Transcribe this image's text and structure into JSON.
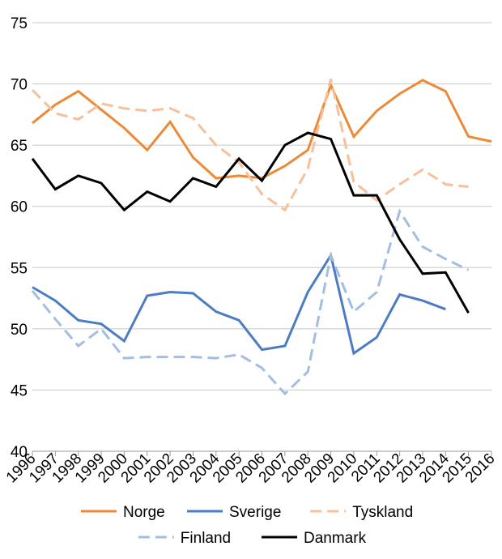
{
  "chart_data": {
    "type": "line",
    "x": [
      "1996",
      "1997",
      "1998",
      "1999",
      "2000",
      "2001",
      "2002",
      "2003",
      "2004",
      "2005",
      "2006",
      "2007",
      "2008",
      "2009",
      "2010",
      "2011",
      "2012",
      "2013",
      "2014",
      "2015",
      "2016"
    ],
    "ylim": [
      40,
      75
    ],
    "yticks": [
      40,
      45,
      50,
      55,
      60,
      65,
      70,
      75
    ],
    "grid": true,
    "legend_position": "bottom",
    "series": [
      {
        "name": "Norge",
        "color": "#ed8a38",
        "dash": "solid",
        "values": [
          66.8,
          68.3,
          69.4,
          67.9,
          66.4,
          64.6,
          66.9,
          64.0,
          62.3,
          62.5,
          62.3,
          63.3,
          64.6,
          69.9,
          65.7,
          67.8,
          69.2,
          70.3,
          69.4,
          65.7,
          65.3
        ]
      },
      {
        "name": "Sverige",
        "color": "#4c7dc3",
        "dash": "solid",
        "values": [
          53.4,
          52.3,
          50.7,
          50.4,
          49.0,
          52.7,
          53.0,
          52.9,
          51.4,
          50.7,
          48.3,
          48.6,
          53.0,
          56.0,
          48.0,
          49.3,
          52.8,
          52.3,
          51.6,
          null,
          null
        ]
      },
      {
        "name": "Tyskland",
        "color": "#f7c09a",
        "dash": "dashed",
        "values": [
          69.5,
          67.6,
          67.1,
          68.4,
          68.0,
          67.8,
          68.0,
          67.2,
          65.0,
          63.6,
          61.0,
          59.7,
          63.1,
          70.4,
          62.0,
          60.5,
          61.8,
          63.0,
          61.8,
          61.6,
          null
        ]
      },
      {
        "name": "Finland",
        "color": "#a4bde2",
        "dash": "dashed",
        "values": [
          53.1,
          50.8,
          48.6,
          50.0,
          47.6,
          47.7,
          47.7,
          47.7,
          47.6,
          47.9,
          46.8,
          44.7,
          46.5,
          56.0,
          51.4,
          53.0,
          59.6,
          56.7,
          55.7,
          54.8,
          null
        ]
      },
      {
        "name": "Danmark",
        "color": "#000000",
        "dash": "solid",
        "values": [
          63.9,
          61.4,
          62.5,
          61.9,
          59.7,
          61.2,
          60.4,
          62.3,
          61.6,
          63.9,
          62.1,
          65.0,
          66.0,
          65.5,
          60.9,
          60.9,
          57.3,
          54.5,
          54.6,
          51.3,
          null
        ]
      }
    ]
  }
}
